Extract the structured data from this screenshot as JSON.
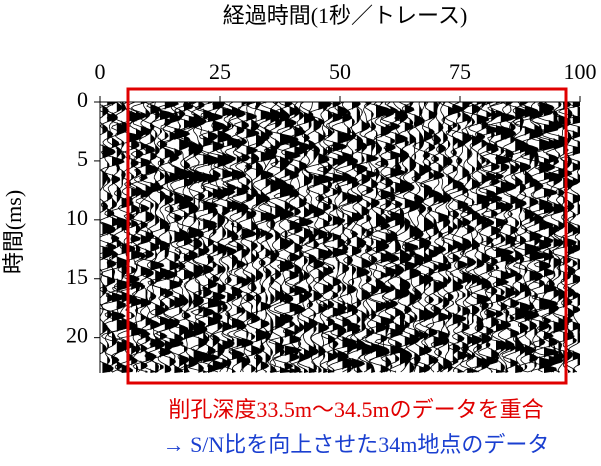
{
  "chart_data": {
    "type": "wiggle",
    "title": "経過時間(1秒／トレース)",
    "y_label": "時間(ms)",
    "xlim": [
      0,
      100
    ],
    "xticks": [
      0,
      25,
      50,
      75,
      100
    ],
    "ylim": [
      0,
      23
    ],
    "yticks": [
      0,
      5,
      10,
      15,
      20
    ],
    "annotations": [
      "削孔深度33.5m〜34.5mのデータを重合",
      "→ S/N比を向上させた34m地点のデータ"
    ]
  }
}
